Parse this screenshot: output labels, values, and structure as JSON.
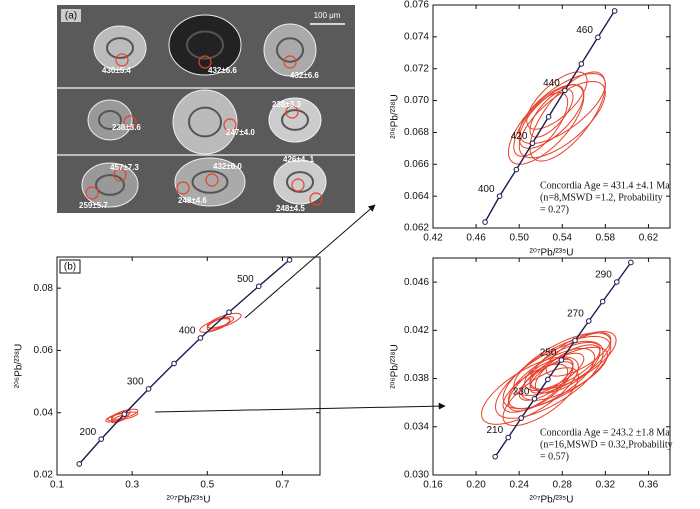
{
  "micrograph": {
    "label": "(a)",
    "scale": "100 μm",
    "ages": [
      "430±5.4",
      "432±6.6",
      "432±6.6",
      "238±3.6",
      "247±4.0",
      "238±3.3",
      "457±7.3",
      "432±6.0",
      "426±4. 1",
      "259±5.7",
      "248±4.6",
      "248±4.5"
    ]
  },
  "chart_data": [
    {
      "type": "concordia",
      "panel": "(b)",
      "x_label": "²⁰⁷Pb/²³⁵U",
      "y_label": "²⁰⁶Pb/²³⁸U",
      "xlim": [
        0.1,
        0.8
      ],
      "xticks": [
        0.1,
        0.3,
        0.5,
        0.7
      ],
      "ylim": [
        0.02,
        0.09
      ],
      "yticks": [
        0.02,
        0.04,
        0.06,
        0.08
      ],
      "concordia": {
        "color": "#1c1c50",
        "x": [
          0.1592,
          0.2177,
          0.2792,
          0.3437,
          0.4116,
          0.4818,
          0.5577,
          0.637,
          0.7189
        ],
        "values": [
          0.02354,
          0.03152,
          0.03954,
          0.04763,
          0.05579,
          0.064,
          0.0723,
          0.08061,
          0.08906
        ],
        "point_labels": [
          null,
          200,
          null,
          300,
          null,
          400,
          null,
          500,
          null
        ]
      },
      "ellipses": {
        "color": "#e8402a",
        "x": [
          0.26,
          0.27,
          0.28,
          0.265,
          0.275,
          0.52,
          0.535,
          0.545,
          0.53
        ],
        "values": [
          0.0385,
          0.039,
          0.0395,
          0.038,
          0.0388,
          0.068,
          0.069,
          0.0695,
          0.0685
        ],
        "x_err": [
          0.03,
          0.025,
          0.035,
          0.02,
          0.04,
          0.04,
          0.035,
          0.045,
          0.03
        ],
        "y_err": [
          0.0015,
          0.0018,
          0.0016,
          0.0012,
          0.0014,
          0.0022,
          0.0018,
          0.0024,
          0.002
        ]
      }
    },
    {
      "type": "concordia",
      "x_label": "²⁰⁷Pb/²³⁵U",
      "y_label": "²⁰⁶Pb/²³⁸U",
      "xlim": [
        0.42,
        0.64
      ],
      "xticks": [
        0.42,
        0.46,
        {
          "value": 0.5,
          "label": "0.50"
        },
        0.54,
        0.58,
        0.62
      ],
      "ylim": [
        0.062,
        0.076
      ],
      "yticks": [
        0.062,
        0.064,
        0.066,
        0.068,
        {
          "value": 0.07,
          "label": "0.070"
        },
        0.072,
        0.074,
        0.076
      ],
      "concordia": {
        "color": "#1c1c50",
        "x": [
          0.4683,
          0.4818,
          0.4974,
          0.5123,
          0.5273,
          0.5424,
          0.5577,
          0.5731,
          0.5886
        ],
        "values": [
          0.06237,
          0.064,
          0.06567,
          0.06732,
          0.06898,
          0.07064,
          0.0723,
          0.07397,
          0.07563
        ],
        "point_labels": [
          null,
          400,
          null,
          420,
          null,
          440,
          null,
          460,
          null
        ]
      },
      "ellipses": {
        "color": "#e8402a",
        "x": [
          0.525,
          0.53,
          0.54,
          0.535,
          0.52,
          0.545,
          0.53,
          0.54
        ],
        "values": [
          0.0685,
          0.069,
          0.0695,
          0.07,
          0.0685,
          0.069,
          0.0692,
          0.0688
        ],
        "x_err": [
          0.035,
          0.03,
          0.04,
          0.028,
          0.025,
          0.035,
          0.02,
          0.04
        ],
        "y_err": [
          0.0025,
          0.002,
          0.0022,
          0.0018,
          0.002,
          0.0028,
          0.0015,
          0.0024
        ]
      },
      "annotation": [
        "Concordia Age = 431.4 ±4.1 Ma",
        "(n=8,MSWD =1.2, Probability",
        "= 0.27)"
      ]
    },
    {
      "type": "concordia",
      "x_label": "²⁰⁷Pb/²³⁵U",
      "y_label": "²⁰⁶Pb/²³⁸U",
      "xlim": [
        0.16,
        0.38
      ],
      "xticks": [
        0.16,
        {
          "value": 0.2,
          "label": "0.20"
        },
        0.24,
        0.28,
        0.32,
        0.36
      ],
      "ylim": [
        0.03,
        0.048
      ],
      "yticks": [
        {
          "value": 0.03,
          "label": "0.030"
        },
        0.034,
        0.038,
        0.042,
        0.046
      ],
      "concordia": {
        "color": "#1c1c50",
        "x": [
          0.2177,
          0.2298,
          0.2419,
          0.2542,
          0.2666,
          0.2792,
          0.2918,
          0.3046,
          0.3175,
          0.3306,
          0.3437
        ],
        "values": [
          0.03152,
          0.03311,
          0.03472,
          0.03632,
          0.03793,
          0.03954,
          0.04116,
          0.04277,
          0.04439,
          0.04601,
          0.04763
        ],
        "point_labels": [
          null,
          210,
          null,
          230,
          null,
          250,
          null,
          270,
          null,
          290,
          null
        ]
      },
      "ellipses": {
        "color": "#e8402a",
        "x": [
          0.27,
          0.28,
          0.26,
          0.275,
          0.29,
          0.265,
          0.25,
          0.285,
          0.27,
          0.28,
          0.26,
          0.295,
          0.275,
          0.268,
          0.282,
          0.255
        ],
        "values": [
          0.038,
          0.039,
          0.0375,
          0.0385,
          0.0395,
          0.0378,
          0.037,
          0.0388,
          0.0382,
          0.0392,
          0.0365,
          0.04,
          0.0386,
          0.0379,
          0.0384,
          0.0372
        ],
        "x_err": [
          0.04,
          0.035,
          0.03,
          0.05,
          0.04,
          0.025,
          0.045,
          0.03,
          0.02,
          0.045,
          0.035,
          0.03,
          0.025,
          0.05,
          0.04,
          0.03
        ],
        "y_err": [
          0.0025,
          0.002,
          0.0022,
          0.003,
          0.0024,
          0.0016,
          0.0028,
          0.002,
          0.0014,
          0.0026,
          0.0024,
          0.0018,
          0.0015,
          0.0032,
          0.0022,
          0.002
        ]
      },
      "annotation": [
        "Concordia Age = 243.2 ±1.8 Ma",
        "(n=16,MSWD = 0.32,Probability",
        "= 0.57)"
      ]
    }
  ]
}
